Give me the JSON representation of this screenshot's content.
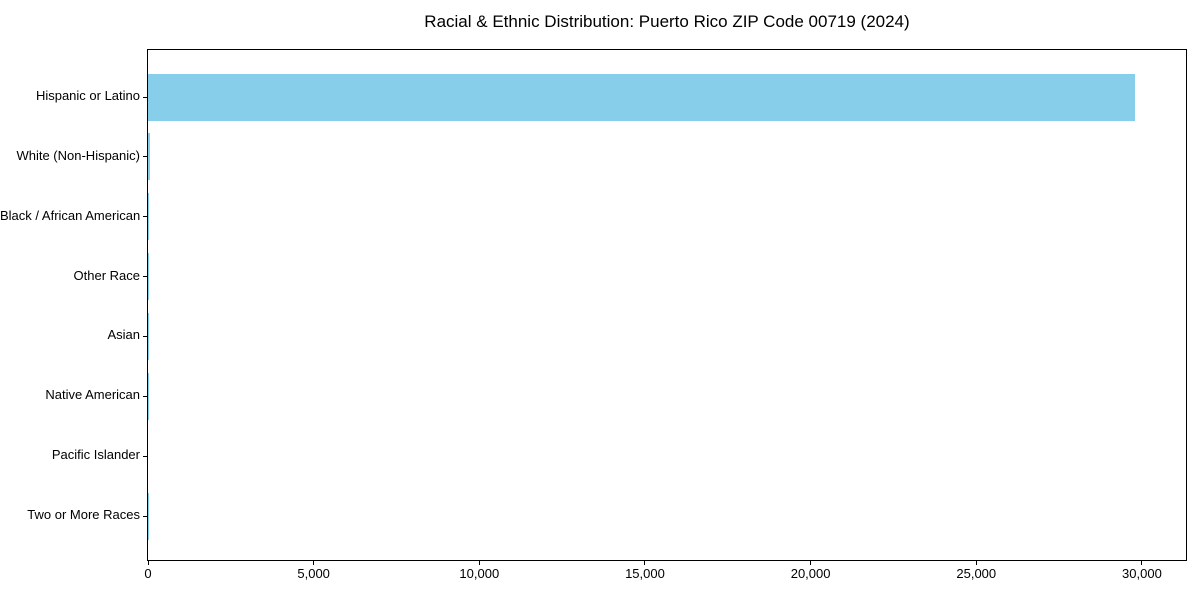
{
  "chart_data": {
    "type": "bar",
    "orientation": "horizontal",
    "title": "Racial & Ethnic Distribution: Puerto Rico ZIP Code 00719 (2024)",
    "categories": [
      "Hispanic or Latino",
      "White (Non-Hispanic)",
      "Black / African American",
      "Other Race",
      "Asian",
      "Native American",
      "Pacific Islander",
      "Two or More Races"
    ],
    "values": [
      29800,
      50,
      15,
      40,
      5,
      5,
      0,
      10
    ],
    "xlabel": "",
    "ylabel": "",
    "xlim": [
      0,
      31330
    ],
    "xticks": [
      0,
      5000,
      10000,
      15000,
      20000,
      25000,
      30000
    ],
    "xtick_labels": [
      "0",
      "5,000",
      "10,000",
      "15,000",
      "20,000",
      "25,000",
      "30,000"
    ],
    "bar_color": "#87CEEB",
    "axis_color": "#000000",
    "background_color": "#ffffff",
    "grid": false,
    "legend": "none"
  }
}
